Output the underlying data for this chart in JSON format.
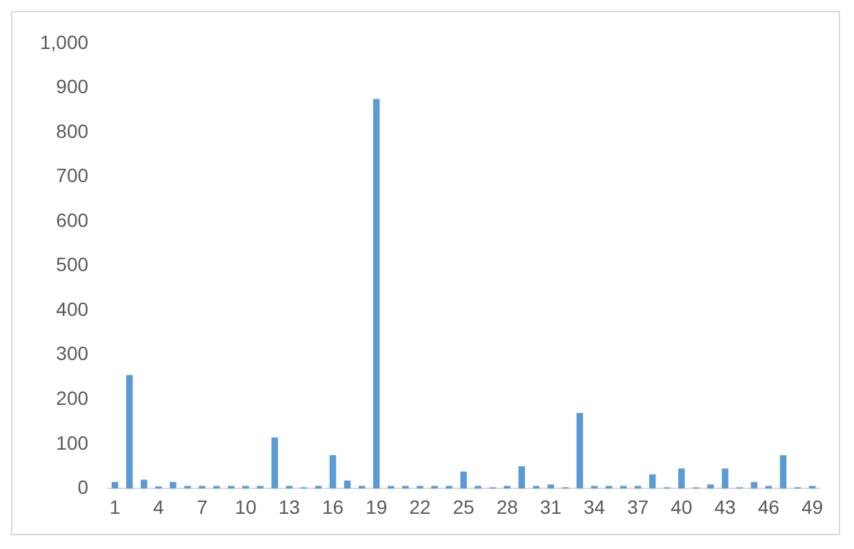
{
  "chart_data": {
    "type": "bar",
    "categories": [
      "1",
      null,
      null,
      "4",
      null,
      null,
      "7",
      null,
      null,
      "10",
      null,
      null,
      "13",
      null,
      null,
      "16",
      null,
      null,
      "19",
      null,
      null,
      "22",
      null,
      null,
      "25",
      null,
      null,
      "28",
      null,
      null,
      "31",
      null,
      null,
      "34",
      null,
      null,
      "37",
      null,
      null,
      "40",
      null,
      null,
      "43",
      null,
      null,
      "46",
      null,
      null,
      "49"
    ],
    "values": [
      15,
      255,
      20,
      5,
      15,
      6,
      6,
      6,
      6,
      6,
      6,
      115,
      6,
      3,
      6,
      75,
      18,
      6,
      875,
      6,
      6,
      6,
      6,
      6,
      38,
      6,
      3,
      6,
      50,
      6,
      9,
      3,
      170,
      6,
      6,
      6,
      6,
      32,
      3,
      45,
      3,
      9,
      45,
      3,
      15,
      6,
      75,
      3,
      6
    ],
    "color": "#5b9bd5",
    "ylim": [
      0,
      1000
    ],
    "yticks": [
      {
        "value": 0,
        "label": "0"
      },
      {
        "value": 100,
        "label": "100"
      },
      {
        "value": 200,
        "label": "200"
      },
      {
        "value": 300,
        "label": "300"
      },
      {
        "value": 400,
        "label": "400"
      },
      {
        "value": 500,
        "label": "500"
      },
      {
        "value": 600,
        "label": "600"
      },
      {
        "value": 700,
        "label": "700"
      },
      {
        "value": 800,
        "label": "800"
      },
      {
        "value": 900,
        "label": "900"
      },
      {
        "value": 1000,
        "label": "1,000"
      }
    ],
    "grid": false,
    "legend": false
  }
}
